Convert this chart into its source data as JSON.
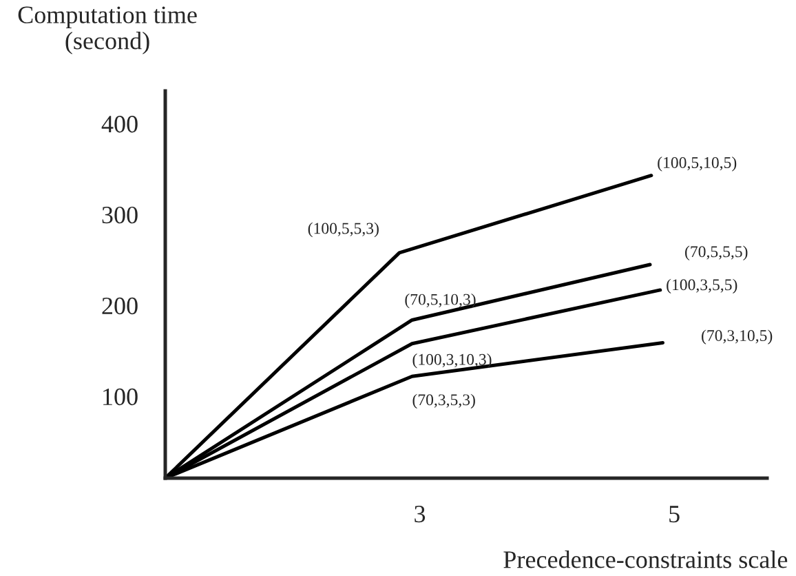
{
  "chart_data": {
    "type": "line",
    "xlabel": "Precedence-constraints scale",
    "ylabel": "Computation time\n(second)",
    "xlim": [
      1,
      5.73
    ],
    "ylim": [
      10,
      436
    ],
    "xticks": [
      3,
      5
    ],
    "yticks": [
      100,
      200,
      300,
      400
    ],
    "grid": false,
    "legend": false,
    "marker": "none",
    "line_style": "solid",
    "series": [
      {
        "color": "#000000",
        "x": [
          1,
          2.84,
          4.82
        ],
        "values": [
          10,
          258,
          343
        ]
      },
      {
        "color": "#000000",
        "x": [
          1,
          2.94,
          4.81
        ],
        "values": [
          10,
          184,
          245
        ]
      },
      {
        "color": "#000000",
        "x": [
          1,
          2.94,
          4.89
        ],
        "values": [
          10,
          158,
          217
        ]
      },
      {
        "color": "#000000",
        "x": [
          1,
          2.94,
          4.91
        ],
        "values": [
          10,
          122,
          159
        ]
      }
    ],
    "annotations": [
      {
        "text": "(100,5,5,3)",
        "x": 2.84,
        "y": 258
      },
      {
        "text": "(100,5,10,5)",
        "x": 4.82,
        "y": 343
      },
      {
        "text": "(70,5,10,3)",
        "x": 2.94,
        "y": 184
      },
      {
        "text": "(70,5,5,5)",
        "x": 4.81,
        "y": 245
      },
      {
        "text": "(100,3,10,3)",
        "x": 2.94,
        "y": 158
      },
      {
        "text": "(100,3,5,5)",
        "x": 4.89,
        "y": 217
      },
      {
        "text": "(70,3,5,3)",
        "x": 2.94,
        "y": 122
      },
      {
        "text": "(70,3,10,5)",
        "x": 4.91,
        "y": 159
      }
    ]
  }
}
